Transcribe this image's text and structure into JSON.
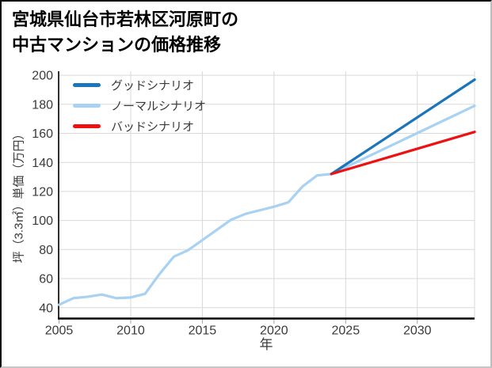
{
  "title": {
    "line1": "宮城県仙台市若林区河原町の",
    "line2": "中古マンションの価格推移"
  },
  "legend": {
    "items": [
      {
        "label": "グッドシナリオ",
        "color": "#1a75bb"
      },
      {
        "label": "ノーマルシナリオ",
        "color": "#a8d1f2"
      },
      {
        "label": "バッドシナリオ",
        "color": "#ee1111"
      }
    ]
  },
  "axes": {
    "x_label": "年",
    "y_label": "坪（3.3㎡）単価（万円）"
  },
  "colors": {
    "grid": "#d9d9d9",
    "spine": "#000000",
    "tick_mark": "#a5a5a5",
    "tick_text": "#3a3a3a"
  },
  "chart_data": {
    "type": "line",
    "title": "宮城県仙台市若林区河原町の中古マンションの価格推移",
    "xlabel": "年",
    "ylabel": "坪（3.3㎡）単価（万円）",
    "xlim": [
      2005,
      2034
    ],
    "ylim": [
      40,
      200
    ],
    "x_ticks": [
      2005,
      2010,
      2015,
      2020,
      2025,
      2030
    ],
    "y_ticks": [
      40,
      60,
      80,
      100,
      120,
      140,
      160,
      180,
      200
    ],
    "grid": true,
    "legend_position": "top-left",
    "series": [
      {
        "name": "グッドシナリオ",
        "color": "#1a75bb",
        "x": [
          2024,
          2034
        ],
        "values": [
          132,
          197
        ]
      },
      {
        "name": "ノーマルシナリオ",
        "color": "#a8d1f2",
        "x": [
          2005,
          2006,
          2007,
          2008,
          2009,
          2010,
          2011,
          2012,
          2013,
          2014,
          2015,
          2016,
          2017,
          2018,
          2019,
          2020,
          2021,
          2022,
          2023,
          2024,
          2034
        ],
        "values": [
          42,
          46.5,
          47.5,
          49,
          46.5,
          47,
          49.5,
          63,
          75,
          79.5,
          86.5,
          93.5,
          100.5,
          104.5,
          107,
          109.5,
          112.5,
          123.5,
          131,
          132,
          179
        ]
      },
      {
        "name": "バッドシナリオ",
        "color": "#ee1111",
        "x": [
          2024,
          2034
        ],
        "values": [
          132,
          161
        ]
      }
    ]
  }
}
